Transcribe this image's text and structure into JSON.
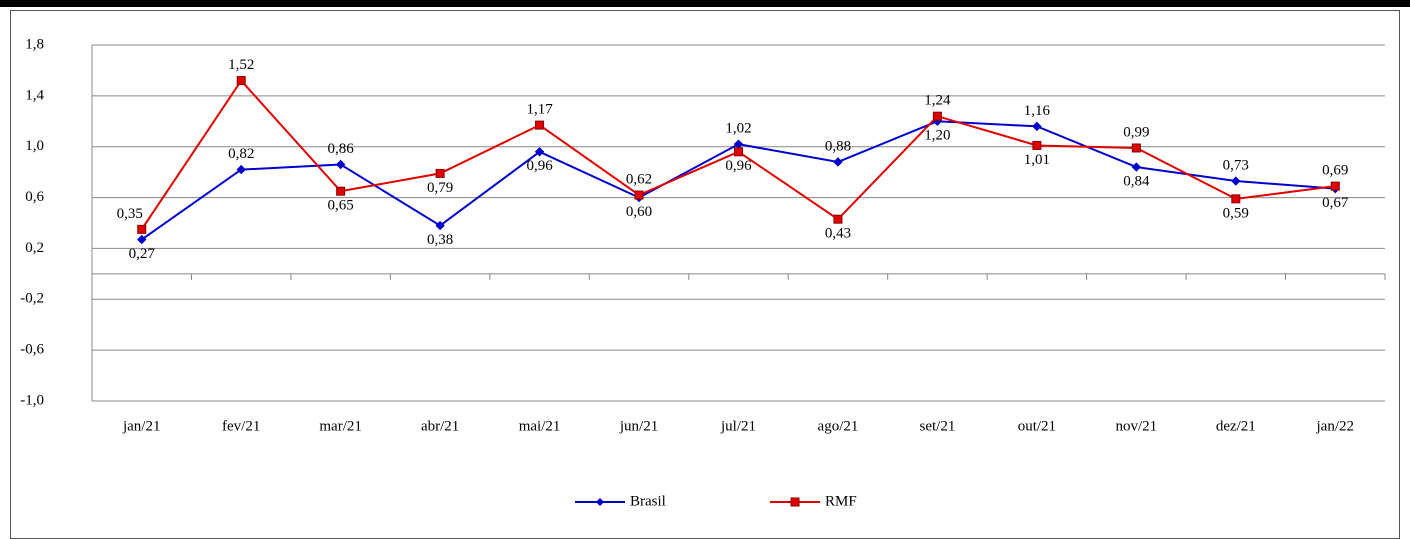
{
  "chart_data": {
    "type": "line",
    "categories": [
      "jan/21",
      "fev/21",
      "mar/21",
      "abr/21",
      "mai/21",
      "jun/21",
      "jul/21",
      "ago/21",
      "set/21",
      "out/21",
      "nov/21",
      "dez/21",
      "jan/22"
    ],
    "series": [
      {
        "name": "Brasil",
        "color": "#0000cc",
        "marker": "diamond",
        "values": [
          0.27,
          0.82,
          0.86,
          0.38,
          0.96,
          0.6,
          1.02,
          0.88,
          1.2,
          1.16,
          0.84,
          0.73,
          0.67
        ],
        "value_labels": [
          "0,27",
          "0,82",
          "0,86",
          "0,38",
          "0,96",
          "0,60",
          "1,02",
          "0,88",
          "1,20",
          "1,16",
          "0,84",
          "0,73",
          "0,67"
        ]
      },
      {
        "name": "RMF",
        "color": "#e00000",
        "marker": "square",
        "values": [
          0.35,
          1.52,
          0.65,
          0.79,
          1.17,
          0.62,
          0.96,
          0.43,
          1.24,
          1.01,
          0.99,
          0.59,
          0.69
        ],
        "value_labels": [
          "0,35",
          "1,52",
          "0,65",
          "0,79",
          "1,17",
          "0,62",
          "0,96",
          "0,43",
          "1,24",
          "1,01",
          "0,99",
          "0,59",
          "0,69"
        ]
      }
    ],
    "ylim": [
      -1.0,
      1.8
    ],
    "yticks": [
      {
        "value": -1.0,
        "label": "-1,0"
      },
      {
        "value": -0.6,
        "label": "-0,6"
      },
      {
        "value": -0.2,
        "label": "-0,2"
      },
      {
        "value": 0.2,
        "label": "0,2"
      },
      {
        "value": 0.6,
        "label": "0,6"
      },
      {
        "value": 1.0,
        "label": "1,0"
      },
      {
        "value": 1.4,
        "label": "1,4"
      },
      {
        "value": 1.8,
        "label": "1,8"
      }
    ],
    "grid": true,
    "negative_tick_color": "#e00000",
    "legend": "bottom"
  }
}
